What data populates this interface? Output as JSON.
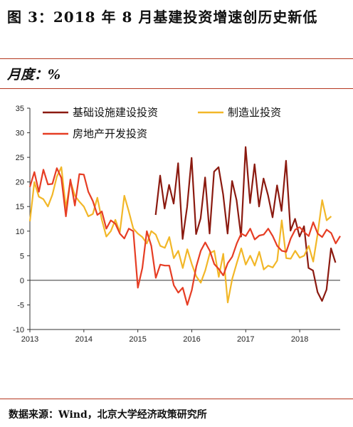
{
  "header": {
    "title": "图 3：2018 年 8 月基建投资增速创历史新低",
    "unit_label": "月度：%"
  },
  "footer": {
    "source": "数据来源：Wind，北京大学经济政策研究所"
  },
  "colors": {
    "rule": "#b5371f",
    "axis": "#333333"
  },
  "chart_data": {
    "type": "line",
    "title": "",
    "xlabel": "",
    "ylabel": "",
    "xlim": [
      2013.0,
      2018.75
    ],
    "ylim": [
      -10,
      35
    ],
    "yticks": [
      -10,
      -5,
      0,
      5,
      10,
      15,
      20,
      25,
      30,
      35
    ],
    "yticklabels": [
      "-10",
      "-5",
      "0",
      "5",
      "10",
      "15",
      "20",
      "25",
      "30",
      "35"
    ],
    "xticks": [
      2013,
      2014,
      2015,
      2016,
      2017,
      2018
    ],
    "xticklabels": [
      "2013",
      "2014",
      "2015",
      "2016",
      "2017",
      "2018"
    ],
    "legend_position": "top",
    "grid": false,
    "series": [
      {
        "name": "基础设施建设投资",
        "color": "#8b1a10",
        "x_start": 2015.33,
        "step": 0.0833333,
        "values": [
          13.3,
          21.3,
          14.6,
          19.4,
          15.6,
          23.8,
          8.4,
          14.9,
          24.9,
          9.4,
          12.6,
          20.9,
          9.5,
          22.1,
          23.0,
          17.5,
          9.5,
          20.2,
          16.3,
          8.9,
          27.1,
          15.7,
          23.6,
          15.0,
          20.7,
          17.3,
          12.8,
          19.3,
          14.1,
          24.3,
          10.1,
          12.5,
          8.9,
          11.0,
          2.5,
          2.0,
          -2.4,
          -4.2,
          -1.9,
          6.5,
          3.6
        ]
      },
      {
        "name": "制造业投资",
        "color": "#f2b728",
        "x_start": 2013.0,
        "step": 0.0833333,
        "values": [
          12.0,
          20.0,
          17.0,
          16.5,
          15.0,
          17.4,
          21.1,
          23.0,
          14.7,
          20.2,
          17.2,
          16.0,
          15.0,
          13.0,
          13.5,
          16.8,
          12.3,
          8.9,
          10.0,
          12.3,
          9.8,
          17.2,
          14.0,
          10.5,
          9.5,
          8.8,
          7.5,
          10.0,
          9.3,
          7.0,
          6.6,
          8.8,
          4.5,
          6.0,
          2.5,
          6.3,
          3.3,
          0.8,
          -0.5,
          2.0,
          5.5,
          6.0,
          0.7,
          5.4,
          -4.5,
          0.3,
          3.5,
          6.5,
          3.2,
          5.0,
          3.0,
          5.8,
          2.2,
          3.0,
          2.6,
          4.0,
          12.2,
          4.5,
          4.4,
          6.0,
          4.6,
          5.0,
          7.0,
          3.8,
          9.5,
          16.3,
          12.2,
          13.0
        ]
      },
      {
        "name": "房地产开发投资",
        "color": "#e63d24",
        "x_start": 2013.0,
        "step": 0.0833333,
        "values": [
          19.0,
          22.0,
          18.0,
          22.5,
          19.5,
          19.6,
          22.8,
          20.8,
          13.0,
          20.5,
          15.2,
          21.6,
          21.5,
          18.0,
          16.1,
          13.3,
          14.0,
          10.5,
          12.2,
          11.5,
          9.5,
          8.5,
          10.5,
          10.0,
          -1.5,
          2.5,
          10.0,
          7.0,
          0.5,
          3.2,
          3.0,
          3.0,
          -1.0,
          -2.5,
          -1.5,
          -5.0,
          -2.0,
          2.8,
          6.0,
          7.7,
          6.0,
          3.3,
          2.3,
          1.0,
          3.5,
          4.8,
          7.5,
          9.5,
          9.0,
          10.5,
          8.3,
          9.1,
          9.3,
          10.5,
          9.0,
          7.0,
          6.0,
          5.8,
          8.5,
          10.3,
          10.8,
          9.8,
          9.0,
          11.8,
          9.5,
          8.8,
          10.3,
          9.6,
          7.5,
          9.0
        ]
      }
    ]
  }
}
